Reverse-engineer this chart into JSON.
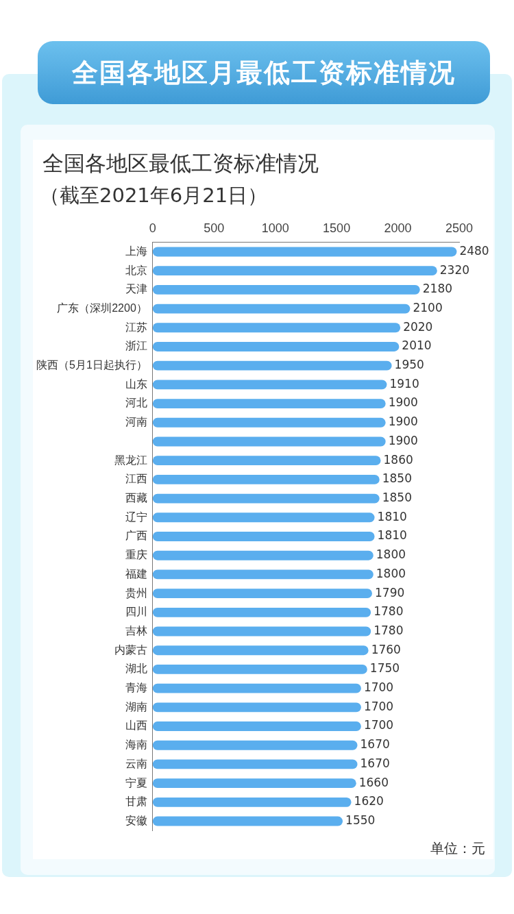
{
  "chart_data": {
    "type": "bar",
    "orientation": "horizontal",
    "title": "全国各地区月最低工资标准情况",
    "subtitle": "全国各地区最低工资标准情况",
    "annotations": [
      "（截至2021年6月21日）",
      "单位：元"
    ],
    "categories": [
      "上海",
      "北京",
      "天津",
      "广东（深圳2200）",
      "江苏",
      "浙江",
      "陕西（5月1日起执行）",
      "山东",
      "河北",
      "河南",
      null,
      "黑龙江",
      "江西",
      "西藏",
      "辽宁",
      "广西",
      "重庆",
      "福建",
      "贵州",
      "四川",
      "吉林",
      "内蒙古",
      "湖北",
      "青海",
      "湖南",
      "山西",
      "海南",
      "云南",
      "宁夏",
      "甘肃",
      "安徽"
    ],
    "values": [
      2480,
      2320,
      2180,
      2100,
      2020,
      2010,
      1950,
      1910,
      1900,
      1900,
      1900,
      1860,
      1850,
      1850,
      1810,
      1810,
      1800,
      1800,
      1790,
      1780,
      1780,
      1760,
      1750,
      1700,
      1700,
      1700,
      1670,
      1670,
      1660,
      1620,
      1550
    ],
    "color": "#5aaeee",
    "xlim": [
      0,
      2500
    ],
    "xticks": [
      0,
      500,
      1000,
      1500,
      2000,
      2500
    ],
    "data_labels": true
  }
}
